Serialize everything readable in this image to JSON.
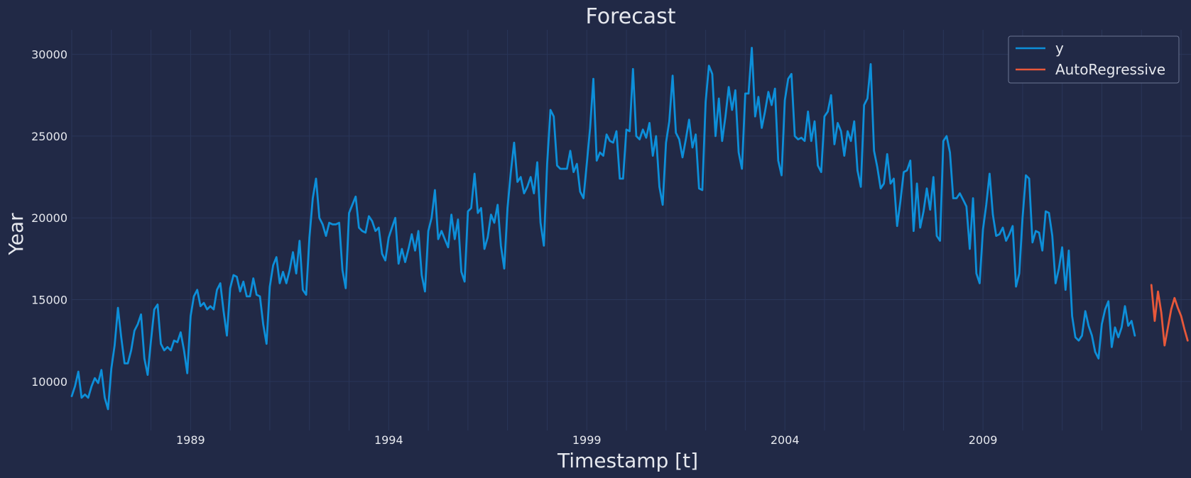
{
  "chart_data": {
    "type": "line",
    "title": "Forecast",
    "xlabel": "Timestamp [t]",
    "ylabel": "Year",
    "xlim": [
      1986.0,
      2014.25
    ],
    "ylim": [
      7000,
      31500
    ],
    "x_ticks": [
      1989,
      1994,
      1999,
      2004,
      2009
    ],
    "y_ticks": [
      10000,
      15000,
      20000,
      25000,
      30000
    ],
    "grid": true,
    "legend_position": "top-right",
    "colors": {
      "background": "#212946",
      "grid": "#2a3659",
      "y": "#0d8fd9",
      "forecast": "#e8583a",
      "text": "#e6e8ee"
    },
    "series": [
      {
        "name": "y",
        "x_start": 1986.0,
        "x_step": 0.08333,
        "values": [
          9100,
          9700,
          10600,
          9000,
          9200,
          9000,
          9700,
          10200,
          9900,
          10700,
          9000,
          8300,
          10800,
          12200,
          14500,
          12700,
          11100,
          11100,
          11900,
          13100,
          13500,
          14100,
          11400,
          10400,
          12500,
          14400,
          14700,
          12300,
          11900,
          12100,
          11900,
          12500,
          12400,
          13000,
          11900,
          10500,
          14000,
          15200,
          15600,
          14600,
          14800,
          14400,
          14600,
          14400,
          15600,
          16000,
          14300,
          12800,
          15700,
          16500,
          16400,
          15500,
          16100,
          15200,
          15200,
          16300,
          15300,
          15200,
          13500,
          12300,
          15800,
          17100,
          17600,
          16000,
          16700,
          16000,
          16800,
          17900,
          16600,
          18600,
          15600,
          15300,
          18800,
          21200,
          22400,
          20000,
          19600,
          18900,
          19700,
          19600,
          19600,
          19700,
          16800,
          15700,
          20300,
          20800,
          21300,
          19400,
          19200,
          19100,
          20100,
          19800,
          19200,
          19400,
          17800,
          17400,
          18800,
          19400,
          20000,
          17200,
          18100,
          17300,
          18100,
          19000,
          18000,
          19200,
          16500,
          15500,
          19200,
          20000,
          21700,
          18700,
          19200,
          18700,
          18200,
          20200,
          18700,
          19900,
          16700,
          16100,
          20400,
          20600,
          22700,
          20300,
          20600,
          18100,
          18800,
          20200,
          19700,
          20800,
          18300,
          16900,
          20600,
          22800,
          24600,
          22200,
          22500,
          21500,
          21900,
          22500,
          21500,
          23400,
          19700,
          18300,
          23300,
          26600,
          26200,
          23200,
          23000,
          23000,
          23000,
          24100,
          22800,
          23300,
          21600,
          21200,
          23300,
          25500,
          28500,
          23500,
          24000,
          23800,
          25100,
          24700,
          24600,
          25300,
          22400,
          22400,
          25400,
          25300,
          29100,
          25000,
          24800,
          25400,
          24900,
          25800,
          23800,
          25000,
          21900,
          20800,
          24600,
          25900,
          28700,
          25200,
          24800,
          23700,
          24800,
          26000,
          24300,
          25100,
          21800,
          21700,
          27100,
          29300,
          28800,
          25000,
          27300,
          24700,
          26200,
          28000,
          26600,
          27800,
          24000,
          23000,
          27600,
          27600,
          30400,
          26200,
          27400,
          25500,
          26500,
          27700,
          26900,
          27900,
          23500,
          22600,
          27200,
          28500,
          28800,
          25000,
          24800,
          24900,
          24700,
          26500,
          24700,
          25900,
          23200,
          22800,
          26200,
          26500,
          27500,
          24500,
          25800,
          25300,
          23800,
          25300,
          24700,
          25900,
          22900,
          21900,
          26900,
          27300,
          29400,
          24100,
          23100,
          21800,
          22100,
          23900,
          22100,
          22400,
          19500,
          21000,
          22800,
          22900,
          23500,
          19200,
          22100,
          19400,
          20400,
          21800,
          20500,
          22500,
          18900,
          18600,
          24700,
          25000,
          24000,
          21200,
          21200,
          21500,
          21100,
          20700,
          18100,
          21200,
          16600,
          16000,
          19300,
          20800,
          22700,
          20200,
          18900,
          19000,
          19400,
          18600,
          19000,
          19500,
          15800,
          16600,
          20000,
          22600,
          22400,
          18500,
          19200,
          19100,
          18000,
          20400,
          20300,
          18900,
          16000,
          16900,
          18200,
          15600,
          18000,
          14000,
          12700,
          12500,
          12800,
          14300,
          13400,
          12800,
          11800,
          11400,
          13500,
          14400,
          14900,
          12100,
          13300,
          12700,
          13300,
          14600,
          13400,
          13700,
          12800
        ]
      },
      {
        "name": "AutoRegressive",
        "x_start": 2013.25,
        "x_step": 0.08333,
        "values": [
          15900,
          13700,
          15500,
          14200,
          12200,
          13300,
          14400,
          15100,
          14500,
          14000,
          13200,
          12500
        ]
      }
    ]
  }
}
